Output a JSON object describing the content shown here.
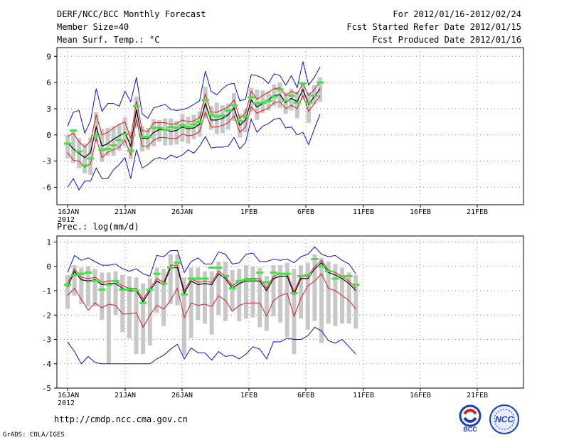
{
  "header": {
    "title": "DERF/NCC/BCC Monthly Forecast",
    "member_size": "Member Size=40",
    "variable": "Mean Surf. Temp.: °C",
    "period": "For 2012/01/16-2012/02/24",
    "started": "Fcst Started Refer Date 2012/01/15",
    "produced": "Fcst Produced Date 2012/01/16"
  },
  "footer": {
    "url": "http://cmdp.ncc.cma.gov.cn",
    "credit": "GrADS: COLA/IGES",
    "logo_bcc": "BCC",
    "logo_ncc": "NCC"
  },
  "colors": {
    "ensemble_mean": "#000000",
    "spread": "#d21e1e",
    "envelope": "#1010c0",
    "box": "#c8c8c8",
    "marker": "#3ae83a",
    "grid": "#888888"
  },
  "chart_data": [
    {
      "type": "line",
      "title": "Mean Surf. Temp.: °C",
      "x_start_label": "16JAN",
      "x_tick_labels": [
        "16JAN\n2012",
        "21JAN",
        "26JAN",
        "1FEB",
        "6FEB",
        "11FEB",
        "16FEB",
        "21FEB"
      ],
      "ylim": [
        -8,
        10
      ],
      "y_ticks": [
        -6,
        -3,
        0,
        3,
        6,
        9
      ],
      "series": [
        {
          "name": "ensemble_mean",
          "values": [
            -0.9,
            -1.6,
            -2.1,
            -2.6,
            -2.0,
            0.9,
            -1.3,
            -1.0,
            -0.5,
            -0.1,
            0.3,
            -1.3,
            2.9,
            -0.4,
            -0.4,
            0.3,
            0.6,
            0.6,
            0.4,
            0.5,
            0.9,
            0.7,
            0.8,
            1.2,
            3.6,
            1.7,
            1.7,
            1.9,
            2.3,
            3.1,
            1.1,
            1.7,
            4.0,
            3.2,
            3.6,
            4.0,
            4.5,
            4.6,
            3.7,
            4.2,
            3.8,
            5.2,
            3.5,
            4.4,
            5.3
          ]
        },
        {
          "name": "spread_upper",
          "values": [
            -0.2,
            0.2,
            -0.8,
            -1.4,
            -0.7,
            2.3,
            0.0,
            0.3,
            0.8,
            1.2,
            1.5,
            -0.4,
            3.9,
            0.5,
            0.4,
            1.4,
            1.4,
            1.4,
            1.2,
            1.3,
            1.7,
            1.5,
            1.6,
            2.0,
            4.7,
            2.6,
            2.6,
            2.9,
            3.2,
            4.0,
            1.9,
            2.5,
            5.0,
            4.1,
            4.5,
            4.9,
            5.3,
            5.4,
            4.5,
            5.0,
            4.7,
            5.9,
            4.5,
            5.2,
            6.1
          ]
        },
        {
          "name": "spread_lower",
          "values": [
            -2.0,
            -2.9,
            -3.0,
            -3.7,
            -3.3,
            -0.4,
            -2.6,
            -2.0,
            -1.7,
            -1.4,
            -0.6,
            -2.3,
            1.8,
            -1.3,
            -1.3,
            -0.6,
            -0.3,
            -0.3,
            -0.4,
            -0.4,
            0.1,
            -0.1,
            0.0,
            0.4,
            2.6,
            0.9,
            0.9,
            1.1,
            1.4,
            2.2,
            0.3,
            0.9,
            3.2,
            2.5,
            2.8,
            3.1,
            3.7,
            3.8,
            3.0,
            3.4,
            3.0,
            4.5,
            2.7,
            3.6,
            4.5
          ]
        },
        {
          "name": "maximum",
          "values": [
            1.0,
            2.6,
            2.8,
            0.2,
            1.6,
            5.3,
            2.7,
            3.6,
            3.6,
            3.3,
            5.0,
            3.8,
            6.6,
            2.4,
            1.9,
            3.1,
            3.3,
            3.5,
            2.9,
            2.8,
            2.9,
            3.1,
            3.5,
            3.9,
            7.3,
            5.0,
            4.6,
            5.3,
            5.8,
            5.9,
            3.9,
            4.1,
            6.9,
            6.8,
            6.5,
            5.9,
            7.0,
            6.8,
            5.7,
            6.8,
            5.4,
            8.4,
            5.7,
            6.6,
            7.8
          ]
        },
        {
          "name": "minimum",
          "values": [
            -6.0,
            -5.0,
            -6.3,
            -5.3,
            -5.3,
            -3.8,
            -5.0,
            -5.0,
            -4.0,
            -3.4,
            -2.6,
            -5.0,
            -1.7,
            -3.8,
            -3.4,
            -2.8,
            -2.6,
            -2.8,
            -2.3,
            -2.6,
            -2.3,
            -1.7,
            -2.1,
            -1.3,
            -0.2,
            -1.5,
            -1.4,
            -1.4,
            -1.3,
            -0.3,
            -1.6,
            -0.9,
            1.8,
            0.3,
            1.0,
            1.3,
            1.8,
            1.9,
            0.8,
            0.9,
            0.0,
            0.3,
            -1.1,
            0.7,
            2.4
          ]
        },
        {
          "name": "box_upper",
          "values": [
            0.0,
            0.4,
            -0.4,
            -1.0,
            -0.3,
            2.6,
            0.7,
            0.8,
            1.0,
            1.3,
            2.0,
            0.4,
            4.4,
            1.0,
            0.8,
            1.8,
            1.7,
            1.9,
            1.9,
            1.6,
            2.4,
            2.1,
            2.3,
            2.7,
            5.5,
            3.3,
            3.7,
            3.4,
            3.6,
            4.8,
            2.4,
            2.9,
            5.4,
            5.2,
            5.1,
            5.0,
            5.8,
            6.0,
            4.9,
            5.3,
            5.0,
            6.1,
            4.9,
            5.7,
            6.6
          ]
        },
        {
          "name": "box_lower",
          "values": [
            -2.7,
            -3.2,
            -3.8,
            -4.4,
            -4.6,
            -0.8,
            -3.1,
            -2.4,
            -2.4,
            -1.8,
            -1.3,
            -2.8,
            0.9,
            -1.9,
            -1.7,
            -1.3,
            -0.8,
            -1.2,
            -1.2,
            -1.1,
            -0.8,
            -1.0,
            -0.5,
            -0.2,
            1.9,
            0.6,
            0.1,
            0.2,
            0.6,
            1.6,
            -0.3,
            0.3,
            2.6,
            1.7,
            2.5,
            2.8,
            3.3,
            3.1,
            2.4,
            2.8,
            1.9,
            4.0,
            1.4,
            3.5,
            3.8
          ]
        },
        {
          "name": "observed_marker",
          "values": [
            -1.0,
            0.5,
            -1.9,
            -3.5,
            -2.7,
            -0.1,
            -1.7,
            -1.6,
            -1.2,
            -0.6,
            0.1,
            -1.8,
            3.3,
            -0.2,
            -0.2,
            0.8,
            0.8,
            0.6,
            0.9,
            0.8,
            1.1,
            0.9,
            1.2,
            1.5,
            4.0,
            2.3,
            2.1,
            2.2,
            2.8,
            3.4,
            1.6,
            2.1,
            4.3,
            3.6,
            3.7,
            3.9,
            4.4,
            5.2,
            3.9,
            4.5,
            3.7,
            5.9,
            3.7,
            4.5,
            6.0
          ]
        }
      ]
    },
    {
      "type": "line",
      "title": "Prec.: log(mm/d)",
      "x_start_label": "16JAN",
      "x_tick_labels": [
        "16JAN\n2012",
        "21JAN",
        "26JAN",
        "1FEB",
        "6FEB",
        "11FEB",
        "16FEB",
        "21FEB"
      ],
      "ylim": [
        -5,
        1.25
      ],
      "y_ticks": [
        -5,
        -4,
        -3,
        -2,
        -1,
        0,
        1
      ],
      "series": [
        {
          "name": "ensemble_mean",
          "values": [
            -0.85,
            -0.2,
            -0.55,
            -0.6,
            -0.55,
            -0.75,
            -0.7,
            -0.7,
            -0.9,
            -1.0,
            -1.0,
            -1.45,
            -1.0,
            -0.6,
            -0.75,
            -0.05,
            -0.05,
            -1.1,
            -0.6,
            -0.75,
            -0.7,
            -0.75,
            -0.3,
            -0.5,
            -0.9,
            -0.7,
            -0.6,
            -0.6,
            -0.6,
            -1.0,
            -0.5,
            -0.4,
            -0.4,
            -1.15,
            -0.5,
            -0.5,
            -0.1,
            0.15,
            -0.25,
            -0.35,
            -0.5,
            -0.7,
            -1.0
          ]
        },
        {
          "name": "spread_upper",
          "values": [
            -0.7,
            -0.1,
            -0.45,
            -0.5,
            -0.45,
            -0.65,
            -0.6,
            -0.6,
            -0.8,
            -0.9,
            -0.9,
            -1.35,
            -0.9,
            -0.5,
            -0.65,
            0.05,
            0.05,
            -1.0,
            -0.5,
            -0.65,
            -0.6,
            -0.65,
            -0.2,
            -0.4,
            -0.8,
            -0.6,
            -0.5,
            -0.5,
            -0.5,
            -0.9,
            -0.4,
            -0.3,
            -0.3,
            -1.05,
            -0.4,
            -0.4,
            0.0,
            0.25,
            -0.15,
            -0.25,
            -0.4,
            -0.6,
            -0.9
          ]
        },
        {
          "name": "spread_lower",
          "values": [
            -1.2,
            -0.9,
            -1.35,
            -1.8,
            -1.5,
            -1.7,
            -1.55,
            -1.6,
            -1.95,
            -1.95,
            -1.9,
            -2.5,
            -2.0,
            -1.6,
            -1.75,
            -1.4,
            -0.9,
            -2.1,
            -1.5,
            -1.6,
            -1.55,
            -1.65,
            -1.2,
            -1.4,
            -1.85,
            -1.6,
            -1.5,
            -1.5,
            -1.5,
            -2.05,
            -1.4,
            -1.2,
            -1.1,
            -2.05,
            -1.3,
            -0.8,
            -0.6,
            -0.3,
            -0.9,
            -1.0,
            -1.2,
            -1.4,
            -1.75
          ]
        },
        {
          "name": "maximum",
          "values": [
            -0.25,
            0.45,
            0.25,
            0.35,
            0.2,
            0.05,
            0.05,
            0.1,
            -0.1,
            -0.2,
            -0.1,
            -0.3,
            -0.4,
            0.45,
            0.4,
            0.65,
            0.65,
            -0.25,
            0.2,
            0.35,
            0.1,
            0.1,
            0.6,
            0.5,
            0.1,
            0.15,
            0.5,
            0.55,
            0.2,
            0.2,
            0.3,
            0.25,
            0.3,
            0.15,
            0.4,
            0.5,
            0.8,
            0.5,
            0.4,
            0.45,
            0.25,
            0.1,
            -0.3
          ]
        },
        {
          "name": "minimum",
          "values": [
            -3.1,
            -3.5,
            -4.0,
            -3.7,
            -3.95,
            -4.0,
            -4.0,
            -4.0,
            -4.0,
            -4.0,
            -4.0,
            -4.0,
            -4.0,
            -3.8,
            -3.65,
            -3.4,
            -3.2,
            -3.8,
            -3.35,
            -3.55,
            -3.55,
            -3.85,
            -3.5,
            -3.7,
            -3.65,
            -3.8,
            -3.6,
            -3.3,
            -3.4,
            -3.8,
            -3.1,
            -3.1,
            -2.95,
            -3.0,
            -3.0,
            -2.85,
            -2.5,
            -2.65,
            -3.05,
            -3.15,
            -3.0,
            -3.3,
            -3.6
          ]
        },
        {
          "name": "box_upper",
          "values": [
            -0.35,
            0.05,
            -0.05,
            0.0,
            -0.1,
            -0.25,
            -0.25,
            -0.2,
            -0.35,
            -0.4,
            -0.45,
            -0.7,
            -0.5,
            -0.05,
            -0.1,
            0.5,
            0.5,
            -0.45,
            -0.05,
            -0.05,
            -0.2,
            -0.2,
            0.2,
            0.2,
            -0.15,
            -0.1,
            0.05,
            0.0,
            -0.05,
            -0.4,
            0.05,
            0.05,
            0.15,
            -0.1,
            0.05,
            0.15,
            0.5,
            0.35,
            0.2,
            0.1,
            -0.05,
            -0.25,
            -0.35
          ]
        },
        {
          "name": "box_lower",
          "values": [
            -1.75,
            -1.2,
            -1.55,
            -1.65,
            -1.65,
            -2.2,
            -4.0,
            -2.0,
            -2.7,
            -2.95,
            -3.6,
            -3.6,
            -3.25,
            -1.9,
            -2.45,
            -1.55,
            -1.6,
            -3.65,
            -2.95,
            -2.2,
            -2.35,
            -2.8,
            -2.0,
            -2.25,
            -1.8,
            -2.25,
            -2.15,
            -2.1,
            -2.5,
            -2.65,
            -2.05,
            -2.3,
            -2.9,
            -3.6,
            -2.15,
            -2.6,
            -2.25,
            -3.15,
            -2.35,
            -2.45,
            -2.35,
            -2.35,
            -2.55
          ]
        },
        {
          "name": "observed_marker",
          "values": [
            -0.75,
            -0.35,
            -0.3,
            -0.25,
            -0.6,
            -0.95,
            -0.75,
            -0.6,
            -0.95,
            -0.95,
            -1.0,
            -1.5,
            -0.95,
            -0.3,
            -0.7,
            -0.05,
            0.15,
            -1.15,
            -0.5,
            -0.5,
            -0.5,
            -0.05,
            -0.05,
            -0.4,
            -0.9,
            -0.6,
            -0.55,
            -0.55,
            -0.25,
            -0.65,
            -0.25,
            -0.3,
            -0.3,
            -1.1,
            -0.4,
            -0.35,
            0.3,
            0.0,
            -0.2,
            -0.5,
            -0.4,
            -0.4,
            -0.75
          ]
        }
      ]
    }
  ]
}
